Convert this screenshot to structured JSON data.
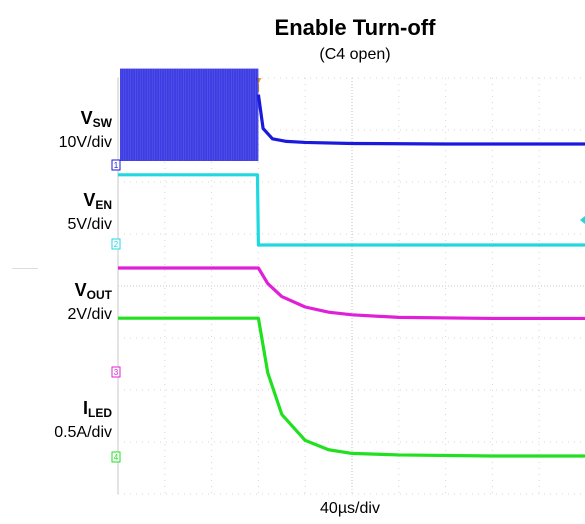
{
  "header": {
    "title": "Enable Turn-off",
    "subtitle": "(C4 open)"
  },
  "xaxis": {
    "label": "40µs/div"
  },
  "channels": [
    {
      "main": "V",
      "sub": "SW",
      "scale": "10V/div",
      "color": "#1a1adc"
    },
    {
      "main": "V",
      "sub": "EN",
      "scale": "5V/div",
      "color": "#20d8e0"
    },
    {
      "main": "V",
      "sub": "OUT",
      "scale": "2V/div",
      "color": "#e020d8"
    },
    {
      "main": "I",
      "sub": "LED",
      "scale": "0.5A/div",
      "color": "#20e020"
    }
  ],
  "chart_data": {
    "type": "line",
    "title": "Enable Turn-off",
    "subtitle": "(C4 open)",
    "xlabel": "40µs/div",
    "x_unit": "div",
    "xlim": [
      0,
      10
    ],
    "grid": true,
    "grid_divisions": {
      "x": 10,
      "y": 8
    },
    "trigger_time_div": 3.0,
    "series": [
      {
        "name": "VSW",
        "scale": "10V/div",
        "color": "#1a1adc",
        "description": "switching node; pulses before enable falls, then settles near a low DC level",
        "x": [
          0,
          2.99,
          3.0,
          3.1,
          3.3,
          3.6,
          4.0,
          5.0,
          7.0,
          10.0
        ],
        "y_div": [
          1.7,
          1.7,
          1.2,
          0.55,
          0.35,
          0.3,
          0.28,
          0.26,
          0.25,
          0.25
        ],
        "switching_before_div": 3.0
      },
      {
        "name": "VEN",
        "scale": "5V/div",
        "color": "#20d8e0",
        "description": "enable signal steps from high to low at the trigger",
        "x": [
          0,
          2.98,
          3.0,
          10.0
        ],
        "y_div": [
          1.35,
          1.35,
          0.0,
          0.0
        ]
      },
      {
        "name": "VOUT",
        "scale": "2V/div",
        "color": "#e020d8",
        "description": "output voltage decays exponentially after enable turn-off",
        "x": [
          0,
          3.0,
          3.2,
          3.5,
          4.0,
          4.5,
          5.0,
          6.0,
          8.0,
          10.0
        ],
        "y_div": [
          1.0,
          1.0,
          0.7,
          0.45,
          0.25,
          0.15,
          0.1,
          0.05,
          0.03,
          0.03
        ]
      },
      {
        "name": "ILED",
        "scale": "0.5A/div",
        "color": "#20e020",
        "description": "LED current falls to near zero after enable turn-off",
        "x": [
          0,
          3.0,
          3.2,
          3.5,
          4.0,
          4.5,
          5.0,
          6.0,
          8.0,
          10.0
        ],
        "y_div": [
          2.65,
          2.65,
          1.6,
          0.8,
          0.3,
          0.12,
          0.05,
          0.02,
          0.0,
          0.0
        ]
      }
    ]
  }
}
